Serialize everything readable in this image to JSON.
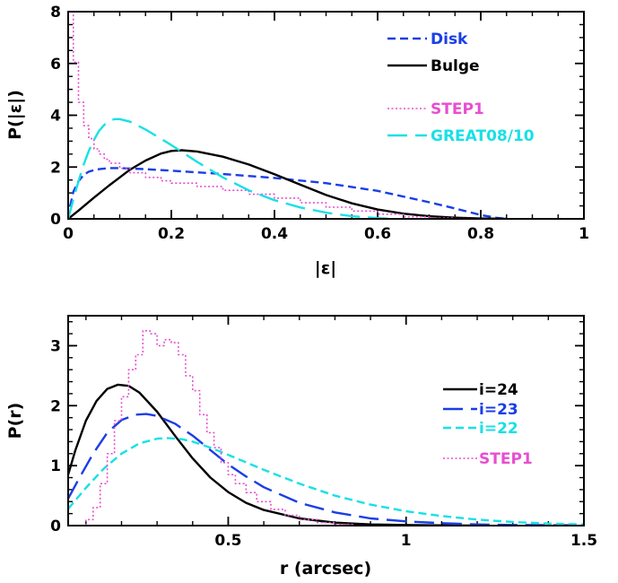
{
  "chart_data": [
    {
      "type": "line",
      "xlabel": "|ε|",
      "ylabel": "P(|ε|)",
      "xlim": [
        0,
        1
      ],
      "ylim": [
        0,
        8
      ],
      "x_ticks": [
        "0",
        "0.2",
        "0.4",
        "0.6",
        "0.8",
        "1"
      ],
      "y_ticks": [
        "0",
        "2",
        "4",
        "6",
        "8"
      ],
      "legend_position": "top-right",
      "series": [
        {
          "name": "Disk",
          "style": "short-dash",
          "color": "#1a3ee6",
          "points": [
            [
              0,
              0
            ],
            [
              0.005,
              0.6
            ],
            [
              0.01,
              1.05
            ],
            [
              0.02,
              1.45
            ],
            [
              0.03,
              1.7
            ],
            [
              0.04,
              1.82
            ],
            [
              0.05,
              1.88
            ],
            [
              0.06,
              1.92
            ],
            [
              0.08,
              1.96
            ],
            [
              0.1,
              1.96
            ],
            [
              0.15,
              1.92
            ],
            [
              0.2,
              1.86
            ],
            [
              0.3,
              1.73
            ],
            [
              0.4,
              1.58
            ],
            [
              0.5,
              1.38
            ],
            [
              0.6,
              1.08
            ],
            [
              0.7,
              0.64
            ],
            [
              0.75,
              0.4
            ],
            [
              0.8,
              0.15
            ],
            [
              0.83,
              0.04
            ],
            [
              0.85,
              0
            ]
          ]
        },
        {
          "name": "Bulge",
          "style": "solid",
          "color": "#000000",
          "points": [
            [
              0,
              0
            ],
            [
              0.02,
              0.32
            ],
            [
              0.05,
              0.82
            ],
            [
              0.08,
              1.3
            ],
            [
              0.1,
              1.6
            ],
            [
              0.12,
              1.9
            ],
            [
              0.15,
              2.25
            ],
            [
              0.18,
              2.52
            ],
            [
              0.2,
              2.62
            ],
            [
              0.22,
              2.65
            ],
            [
              0.25,
              2.6
            ],
            [
              0.3,
              2.4
            ],
            [
              0.35,
              2.1
            ],
            [
              0.4,
              1.72
            ],
            [
              0.45,
              1.32
            ],
            [
              0.5,
              0.92
            ],
            [
              0.55,
              0.6
            ],
            [
              0.6,
              0.36
            ],
            [
              0.65,
              0.2
            ],
            [
              0.7,
              0.1
            ],
            [
              0.75,
              0.045
            ],
            [
              0.8,
              0.015
            ],
            [
              0.85,
              0
            ]
          ]
        },
        {
          "name": "STEP1",
          "style": "dotted-step",
          "color": "#e64fd0",
          "points": [
            [
              0,
              8
            ],
            [
              0.01,
              8
            ],
            [
              0.01,
              6.05
            ],
            [
              0.02,
              6.05
            ],
            [
              0.02,
              4.5
            ],
            [
              0.03,
              4.5
            ],
            [
              0.03,
              3.6
            ],
            [
              0.04,
              3.6
            ],
            [
              0.04,
              3.1
            ],
            [
              0.05,
              3.1
            ],
            [
              0.05,
              2.7
            ],
            [
              0.06,
              2.7
            ],
            [
              0.06,
              2.5
            ],
            [
              0.07,
              2.5
            ],
            [
              0.07,
              2.3
            ],
            [
              0.08,
              2.3
            ],
            [
              0.08,
              2.15
            ],
            [
              0.1,
              2.15
            ],
            [
              0.1,
              1.95
            ],
            [
              0.12,
              1.95
            ],
            [
              0.12,
              1.78
            ],
            [
              0.15,
              1.78
            ],
            [
              0.15,
              1.6
            ],
            [
              0.18,
              1.6
            ],
            [
              0.18,
              1.47
            ],
            [
              0.2,
              1.47
            ],
            [
              0.2,
              1.38
            ],
            [
              0.25,
              1.38
            ],
            [
              0.25,
              1.25
            ],
            [
              0.3,
              1.25
            ],
            [
              0.3,
              1.1
            ],
            [
              0.35,
              1.1
            ],
            [
              0.35,
              0.95
            ],
            [
              0.4,
              0.95
            ],
            [
              0.4,
              0.8
            ],
            [
              0.45,
              0.8
            ],
            [
              0.45,
              0.62
            ],
            [
              0.5,
              0.62
            ],
            [
              0.5,
              0.45
            ],
            [
              0.55,
              0.45
            ],
            [
              0.55,
              0.3
            ],
            [
              0.6,
              0.3
            ],
            [
              0.6,
              0.18
            ],
            [
              0.65,
              0.18
            ],
            [
              0.65,
              0.08
            ],
            [
              0.7,
              0.08
            ],
            [
              0.7,
              0.03
            ],
            [
              0.75,
              0.03
            ],
            [
              0.75,
              0.01
            ],
            [
              0.8,
              0.01
            ],
            [
              0.8,
              0
            ]
          ]
        },
        {
          "name": "GREAT08/10",
          "style": "long-dash",
          "color": "#19e0e6",
          "points": [
            [
              0,
              0
            ],
            [
              0.01,
              0.75
            ],
            [
              0.02,
              1.45
            ],
            [
              0.03,
              2.1
            ],
            [
              0.04,
              2.62
            ],
            [
              0.05,
              3.05
            ],
            [
              0.06,
              3.4
            ],
            [
              0.07,
              3.63
            ],
            [
              0.08,
              3.78
            ],
            [
              0.09,
              3.85
            ],
            [
              0.1,
              3.85
            ],
            [
              0.12,
              3.75
            ],
            [
              0.15,
              3.45
            ],
            [
              0.2,
              2.85
            ],
            [
              0.25,
              2.2
            ],
            [
              0.3,
              1.6
            ],
            [
              0.35,
              1.1
            ],
            [
              0.4,
              0.72
            ],
            [
              0.45,
              0.44
            ],
            [
              0.5,
              0.24
            ],
            [
              0.55,
              0.1
            ],
            [
              0.6,
              0.03
            ],
            [
              0.63,
              0
            ]
          ]
        }
      ]
    },
    {
      "type": "line",
      "xlabel": "r (arcsec)",
      "ylabel": "P(r)",
      "xlim": [
        0.05,
        1.5
      ],
      "ylim": [
        0,
        3.5
      ],
      "x_ticks": [
        "0.5",
        "1",
        "1.5"
      ],
      "y_ticks": [
        "0",
        "1",
        "2",
        "3"
      ],
      "legend_position": "right",
      "series": [
        {
          "name": "i=24",
          "style": "solid",
          "color": "#000000",
          "points": [
            [
              0.05,
              0.85
            ],
            [
              0.07,
              1.25
            ],
            [
              0.1,
              1.75
            ],
            [
              0.13,
              2.08
            ],
            [
              0.16,
              2.28
            ],
            [
              0.19,
              2.35
            ],
            [
              0.22,
              2.33
            ],
            [
              0.25,
              2.22
            ],
            [
              0.3,
              1.9
            ],
            [
              0.35,
              1.5
            ],
            [
              0.4,
              1.12
            ],
            [
              0.45,
              0.8
            ],
            [
              0.5,
              0.56
            ],
            [
              0.55,
              0.38
            ],
            [
              0.6,
              0.26
            ],
            [
              0.7,
              0.12
            ],
            [
              0.8,
              0.05
            ],
            [
              0.9,
              0.02
            ],
            [
              1.0,
              0.01
            ],
            [
              1.1,
              0.004
            ],
            [
              1.2,
              0
            ]
          ]
        },
        {
          "name": "i=23",
          "style": "long-dash",
          "color": "#1a3ee6",
          "points": [
            [
              0.05,
              0.45
            ],
            [
              0.08,
              0.78
            ],
            [
              0.12,
              1.2
            ],
            [
              0.16,
              1.55
            ],
            [
              0.2,
              1.76
            ],
            [
              0.24,
              1.85
            ],
            [
              0.27,
              1.86
            ],
            [
              0.3,
              1.83
            ],
            [
              0.35,
              1.7
            ],
            [
              0.4,
              1.5
            ],
            [
              0.45,
              1.26
            ],
            [
              0.5,
              1.02
            ],
            [
              0.55,
              0.82
            ],
            [
              0.6,
              0.64
            ],
            [
              0.7,
              0.38
            ],
            [
              0.8,
              0.22
            ],
            [
              0.9,
              0.12
            ],
            [
              1.0,
              0.07
            ],
            [
              1.1,
              0.04
            ],
            [
              1.2,
              0.02
            ],
            [
              1.3,
              0.01
            ],
            [
              1.5,
              0.005
            ]
          ]
        },
        {
          "name": "i=22",
          "style": "short-dash",
          "color": "#19e0e6",
          "points": [
            [
              0.05,
              0.28
            ],
            [
              0.1,
              0.63
            ],
            [
              0.15,
              0.95
            ],
            [
              0.2,
              1.2
            ],
            [
              0.25,
              1.37
            ],
            [
              0.3,
              1.45
            ],
            [
              0.33,
              1.46
            ],
            [
              0.37,
              1.44
            ],
            [
              0.4,
              1.4
            ],
            [
              0.45,
              1.3
            ],
            [
              0.5,
              1.18
            ],
            [
              0.6,
              0.93
            ],
            [
              0.7,
              0.7
            ],
            [
              0.8,
              0.5
            ],
            [
              0.9,
              0.35
            ],
            [
              1.0,
              0.24
            ],
            [
              1.1,
              0.16
            ],
            [
              1.2,
              0.1
            ],
            [
              1.3,
              0.06
            ],
            [
              1.4,
              0.035
            ],
            [
              1.5,
              0.02
            ]
          ]
        },
        {
          "name": "STEP1",
          "style": "dotted-step",
          "color": "#e64fd0",
          "points": [
            [
              0.1,
              0
            ],
            [
              0.1,
              0.1
            ],
            [
              0.12,
              0.1
            ],
            [
              0.12,
              0.3
            ],
            [
              0.14,
              0.3
            ],
            [
              0.14,
              0.7
            ],
            [
              0.16,
              0.7
            ],
            [
              0.16,
              1.2
            ],
            [
              0.18,
              1.2
            ],
            [
              0.18,
              1.75
            ],
            [
              0.2,
              1.75
            ],
            [
              0.2,
              2.15
            ],
            [
              0.22,
              2.15
            ],
            [
              0.22,
              2.6
            ],
            [
              0.24,
              2.6
            ],
            [
              0.24,
              2.85
            ],
            [
              0.26,
              2.85
            ],
            [
              0.26,
              3.25
            ],
            [
              0.28,
              3.25
            ],
            [
              0.28,
              3.2
            ],
            [
              0.3,
              3.2
            ],
            [
              0.3,
              3.0
            ],
            [
              0.32,
              3.0
            ],
            [
              0.32,
              3.1
            ],
            [
              0.34,
              3.1
            ],
            [
              0.34,
              3.05
            ],
            [
              0.36,
              3.05
            ],
            [
              0.36,
              2.85
            ],
            [
              0.38,
              2.85
            ],
            [
              0.38,
              2.5
            ],
            [
              0.4,
              2.5
            ],
            [
              0.4,
              2.25
            ],
            [
              0.42,
              2.25
            ],
            [
              0.42,
              1.85
            ],
            [
              0.44,
              1.85
            ],
            [
              0.44,
              1.55
            ],
            [
              0.46,
              1.55
            ],
            [
              0.46,
              1.3
            ],
            [
              0.48,
              1.3
            ],
            [
              0.48,
              1.05
            ],
            [
              0.5,
              1.05
            ],
            [
              0.5,
              0.85
            ],
            [
              0.52,
              0.85
            ],
            [
              0.52,
              0.7
            ],
            [
              0.55,
              0.7
            ],
            [
              0.55,
              0.55
            ],
            [
              0.58,
              0.55
            ],
            [
              0.58,
              0.4
            ],
            [
              0.62,
              0.4
            ],
            [
              0.62,
              0.27
            ],
            [
              0.66,
              0.27
            ],
            [
              0.66,
              0.17
            ],
            [
              0.7,
              0.17
            ],
            [
              0.7,
              0.1
            ],
            [
              0.75,
              0.1
            ],
            [
              0.75,
              0.05
            ],
            [
              0.8,
              0.05
            ],
            [
              0.8,
              0.02
            ],
            [
              0.85,
              0.02
            ],
            [
              0.85,
              0
            ]
          ]
        }
      ]
    }
  ]
}
